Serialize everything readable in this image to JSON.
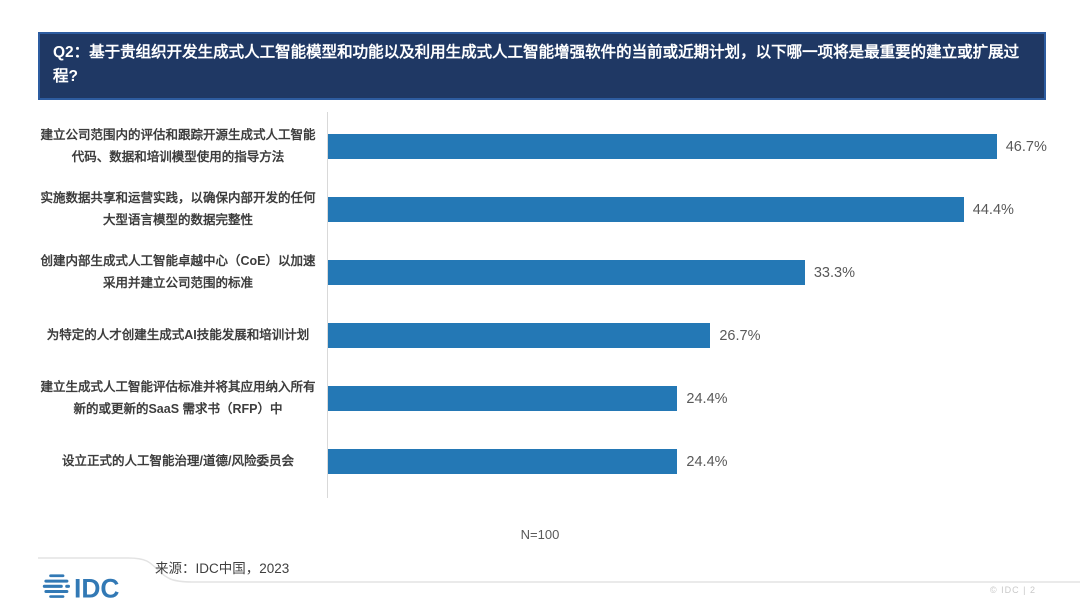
{
  "header": {
    "title": "Q2：基于贵组织开发生成式人工智能模型和功能以及利用生成式人工智能增强软件的当前或近期计划，以下哪一项将是最重要的建立或扩展过程?"
  },
  "chart_data": {
    "type": "bar",
    "orientation": "horizontal",
    "categories": [
      "建立公司范围内的评估和跟踪开源生成式人工智能代码、数据和培训模型使用的指导方法",
      "实施数据共享和运营实践，以确保内部开发的任何大型语言模型的数据完整性",
      "创建内部生成式人工智能卓越中心（CoE）以加速采用并建立公司范围的标准",
      "为特定的人才创建生成式AI技能发展和培训计划",
      "建立生成式人工智能评估标准并将其应用纳入所有新的或更新的SaaS 需求书（RFP）中",
      "设立正式的人工智能治理/道德/风险委员会"
    ],
    "values": [
      46.7,
      44.4,
      33.3,
      26.7,
      24.4,
      24.4
    ],
    "value_labels": [
      "46.7%",
      "44.4%",
      "33.3%",
      "26.7%",
      "24.4%",
      "24.4%"
    ],
    "xlim": [
      0,
      50
    ],
    "grid": false,
    "legend": "none",
    "note": "N=100"
  },
  "footer": {
    "source": "来源：IDC中国，2023",
    "logo_text": "IDC",
    "page_meta": "© IDC | 2"
  },
  "colors": {
    "bar": "#2478B5",
    "header_bg": "#1F3864",
    "header_border": "#2D5CA0",
    "idc_blue": "#3279B5",
    "value_text": "#595959",
    "swoosh_line": "#E3E3E3"
  }
}
